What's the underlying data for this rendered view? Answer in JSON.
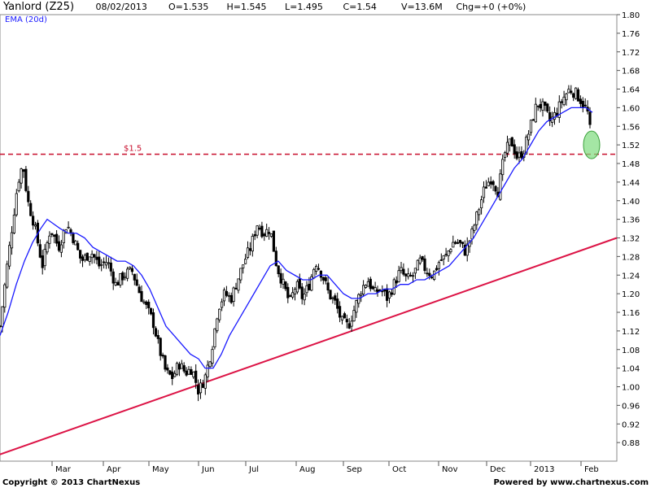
{
  "header": {
    "ticker": "Yanlord (Z25)",
    "date": "08/02/2013",
    "open": "O=1.535",
    "high": "H=1.545",
    "low": "L=1.495",
    "close": "C=1.54",
    "volume": "V=13.6M",
    "change": "Chg=+0 (+0%)"
  },
  "footer": {
    "copyright": "Copyright © 2013 ChartNexus",
    "powered": "Powered by www.chartnexus.com"
  },
  "colors": {
    "candle": "#000000",
    "ema": "#1a1aff",
    "trendline": "#dc1446",
    "level_line": "#c8102e",
    "highlight_fill": "#7ddc7d"
  },
  "chart_data": {
    "type": "candlestick",
    "title": "Yanlord (Z25)",
    "ylim": [
      0.84,
      1.8
    ],
    "y_ticks": [
      "1.80",
      "1.76",
      "1.72",
      "1.68",
      "1.64",
      "1.60",
      "1.56",
      "1.52",
      "1.48",
      "1.44",
      "1.40",
      "1.36",
      "1.32",
      "1.28",
      "1.24",
      "1.20",
      "1.16",
      "1.12",
      "1.08",
      "1.04",
      "1.00",
      "0.96",
      "0.92",
      "0.88"
    ],
    "x_ticks": [
      "Mar",
      "Apr",
      "May",
      "Jun",
      "Jul",
      "Aug",
      "Sep",
      "Oct",
      "Nov",
      "Dec",
      "2013",
      "Feb"
    ],
    "legend": "EMA (20d)",
    "price_level_label": "$1.5",
    "price_level": 1.5,
    "close_series": [
      {
        "t": 0,
        "v": 1.13
      },
      {
        "t": 8,
        "v": 1.25
      },
      {
        "t": 16,
        "v": 1.36
      },
      {
        "t": 22,
        "v": 1.44
      },
      {
        "t": 28,
        "v": 1.48
      },
      {
        "t": 34,
        "v": 1.4
      },
      {
        "t": 42,
        "v": 1.35
      },
      {
        "t": 52,
        "v": 1.26
      },
      {
        "t": 62,
        "v": 1.34
      },
      {
        "t": 72,
        "v": 1.3
      },
      {
        "t": 82,
        "v": 1.35
      },
      {
        "t": 90,
        "v": 1.32
      },
      {
        "t": 100,
        "v": 1.27
      },
      {
        "t": 112,
        "v": 1.29
      },
      {
        "t": 122,
        "v": 1.26
      },
      {
        "t": 132,
        "v": 1.27
      },
      {
        "t": 142,
        "v": 1.22
      },
      {
        "t": 152,
        "v": 1.24
      },
      {
        "t": 162,
        "v": 1.25
      },
      {
        "t": 172,
        "v": 1.2
      },
      {
        "t": 180,
        "v": 1.17
      },
      {
        "t": 188,
        "v": 1.14
      },
      {
        "t": 196,
        "v": 1.08
      },
      {
        "t": 204,
        "v": 1.03
      },
      {
        "t": 212,
        "v": 1.02
      },
      {
        "t": 220,
        "v": 1.05
      },
      {
        "t": 228,
        "v": 1.03
      },
      {
        "t": 236,
        "v": 1.04
      },
      {
        "t": 244,
        "v": 0.99
      },
      {
        "t": 252,
        "v": 1.02
      },
      {
        "t": 260,
        "v": 1.08
      },
      {
        "t": 268,
        "v": 1.17
      },
      {
        "t": 276,
        "v": 1.2
      },
      {
        "t": 284,
        "v": 1.19
      },
      {
        "t": 292,
        "v": 1.23
      },
      {
        "t": 300,
        "v": 1.27
      },
      {
        "t": 308,
        "v": 1.3
      },
      {
        "t": 316,
        "v": 1.35
      },
      {
        "t": 324,
        "v": 1.33
      },
      {
        "t": 332,
        "v": 1.34
      },
      {
        "t": 340,
        "v": 1.26
      },
      {
        "t": 348,
        "v": 1.22
      },
      {
        "t": 356,
        "v": 1.18
      },
      {
        "t": 364,
        "v": 1.22
      },
      {
        "t": 372,
        "v": 1.19
      },
      {
        "t": 380,
        "v": 1.22
      },
      {
        "t": 388,
        "v": 1.27
      },
      {
        "t": 396,
        "v": 1.24
      },
      {
        "t": 404,
        "v": 1.2
      },
      {
        "t": 412,
        "v": 1.18
      },
      {
        "t": 420,
        "v": 1.14
      },
      {
        "t": 428,
        "v": 1.13
      },
      {
        "t": 436,
        "v": 1.17
      },
      {
        "t": 444,
        "v": 1.21
      },
      {
        "t": 452,
        "v": 1.23
      },
      {
        "t": 460,
        "v": 1.2
      },
      {
        "t": 468,
        "v": 1.21
      },
      {
        "t": 476,
        "v": 1.19
      },
      {
        "t": 484,
        "v": 1.22
      },
      {
        "t": 492,
        "v": 1.25
      },
      {
        "t": 500,
        "v": 1.23
      },
      {
        "t": 508,
        "v": 1.24
      },
      {
        "t": 516,
        "v": 1.27
      },
      {
        "t": 524,
        "v": 1.25
      },
      {
        "t": 532,
        "v": 1.24
      },
      {
        "t": 540,
        "v": 1.27
      },
      {
        "t": 548,
        "v": 1.28
      },
      {
        "t": 556,
        "v": 1.31
      },
      {
        "t": 564,
        "v": 1.31
      },
      {
        "t": 572,
        "v": 1.29
      },
      {
        "t": 580,
        "v": 1.33
      },
      {
        "t": 588,
        "v": 1.38
      },
      {
        "t": 596,
        "v": 1.43
      },
      {
        "t": 604,
        "v": 1.45
      },
      {
        "t": 612,
        "v": 1.42
      },
      {
        "t": 620,
        "v": 1.5
      },
      {
        "t": 628,
        "v": 1.53
      },
      {
        "t": 636,
        "v": 1.49
      },
      {
        "t": 644,
        "v": 1.51
      },
      {
        "t": 652,
        "v": 1.56
      },
      {
        "t": 660,
        "v": 1.61
      },
      {
        "t": 668,
        "v": 1.6
      },
      {
        "t": 676,
        "v": 1.57
      },
      {
        "t": 684,
        "v": 1.59
      },
      {
        "t": 692,
        "v": 1.62
      },
      {
        "t": 700,
        "v": 1.64
      },
      {
        "t": 708,
        "v": 1.63
      },
      {
        "t": 716,
        "v": 1.61
      },
      {
        "t": 722,
        "v": 1.59
      },
      {
        "t": 726,
        "v": 1.54
      }
    ],
    "ema_series": [
      {
        "t": 0,
        "v": 1.11
      },
      {
        "t": 10,
        "v": 1.16
      },
      {
        "t": 20,
        "v": 1.22
      },
      {
        "t": 30,
        "v": 1.27
      },
      {
        "t": 40,
        "v": 1.31
      },
      {
        "t": 50,
        "v": 1.34
      },
      {
        "t": 58,
        "v": 1.36
      },
      {
        "t": 66,
        "v": 1.35
      },
      {
        "t": 74,
        "v": 1.34
      },
      {
        "t": 84,
        "v": 1.33
      },
      {
        "t": 94,
        "v": 1.33
      },
      {
        "t": 104,
        "v": 1.32
      },
      {
        "t": 114,
        "v": 1.3
      },
      {
        "t": 124,
        "v": 1.29
      },
      {
        "t": 134,
        "v": 1.28
      },
      {
        "t": 144,
        "v": 1.27
      },
      {
        "t": 154,
        "v": 1.27
      },
      {
        "t": 164,
        "v": 1.26
      },
      {
        "t": 174,
        "v": 1.24
      },
      {
        "t": 184,
        "v": 1.21
      },
      {
        "t": 194,
        "v": 1.17
      },
      {
        "t": 204,
        "v": 1.13
      },
      {
        "t": 214,
        "v": 1.11
      },
      {
        "t": 224,
        "v": 1.09
      },
      {
        "t": 234,
        "v": 1.07
      },
      {
        "t": 244,
        "v": 1.06
      },
      {
        "t": 252,
        "v": 1.04
      },
      {
        "t": 262,
        "v": 1.04
      },
      {
        "t": 272,
        "v": 1.07
      },
      {
        "t": 282,
        "v": 1.11
      },
      {
        "t": 292,
        "v": 1.14
      },
      {
        "t": 302,
        "v": 1.17
      },
      {
        "t": 312,
        "v": 1.2
      },
      {
        "t": 322,
        "v": 1.23
      },
      {
        "t": 332,
        "v": 1.26
      },
      {
        "t": 342,
        "v": 1.27
      },
      {
        "t": 352,
        "v": 1.25
      },
      {
        "t": 362,
        "v": 1.24
      },
      {
        "t": 372,
        "v": 1.23
      },
      {
        "t": 382,
        "v": 1.23
      },
      {
        "t": 392,
        "v": 1.24
      },
      {
        "t": 402,
        "v": 1.24
      },
      {
        "t": 412,
        "v": 1.22
      },
      {
        "t": 422,
        "v": 1.2
      },
      {
        "t": 432,
        "v": 1.19
      },
      {
        "t": 442,
        "v": 1.19
      },
      {
        "t": 452,
        "v": 1.2
      },
      {
        "t": 462,
        "v": 1.2
      },
      {
        "t": 472,
        "v": 1.21
      },
      {
        "t": 482,
        "v": 1.21
      },
      {
        "t": 492,
        "v": 1.22
      },
      {
        "t": 502,
        "v": 1.22
      },
      {
        "t": 512,
        "v": 1.23
      },
      {
        "t": 522,
        "v": 1.23
      },
      {
        "t": 532,
        "v": 1.24
      },
      {
        "t": 542,
        "v": 1.25
      },
      {
        "t": 552,
        "v": 1.26
      },
      {
        "t": 562,
        "v": 1.28
      },
      {
        "t": 572,
        "v": 1.3
      },
      {
        "t": 582,
        "v": 1.32
      },
      {
        "t": 592,
        "v": 1.35
      },
      {
        "t": 602,
        "v": 1.38
      },
      {
        "t": 612,
        "v": 1.41
      },
      {
        "t": 622,
        "v": 1.44
      },
      {
        "t": 632,
        "v": 1.47
      },
      {
        "t": 642,
        "v": 1.49
      },
      {
        "t": 652,
        "v": 1.52
      },
      {
        "t": 662,
        "v": 1.55
      },
      {
        "t": 672,
        "v": 1.57
      },
      {
        "t": 682,
        "v": 1.58
      },
      {
        "t": 692,
        "v": 1.59
      },
      {
        "t": 702,
        "v": 1.6
      },
      {
        "t": 712,
        "v": 1.6
      },
      {
        "t": 720,
        "v": 1.6
      },
      {
        "t": 728,
        "v": 1.59
      }
    ],
    "trendline": [
      {
        "t": -40,
        "v": 0.83
      },
      {
        "t": 758,
        "v": 1.32
      }
    ],
    "highlight": {
      "t": 727,
      "v": 1.52
    }
  }
}
